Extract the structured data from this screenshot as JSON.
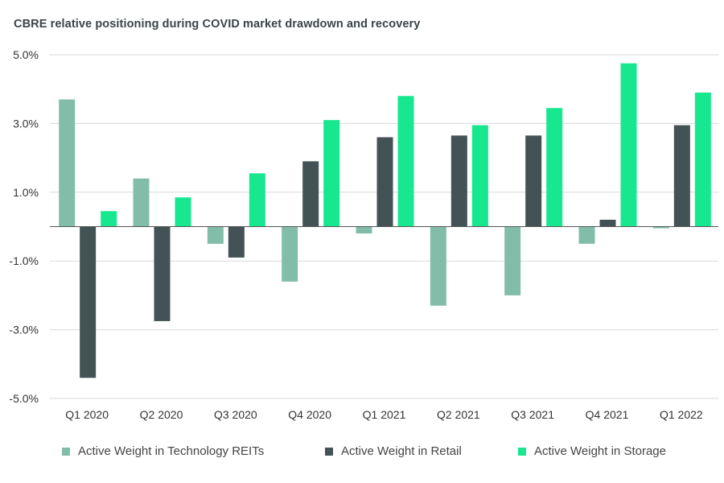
{
  "chart_data": {
    "type": "bar",
    "title": "CBRE relative positioning during COVID market drawdown and recovery",
    "categories": [
      "Q1 2020",
      "Q2 2020",
      "Q3 2020",
      "Q4 2020",
      "Q1 2021",
      "Q2 2021",
      "Q3 2021",
      "Q4 2021",
      "Q1 2022"
    ],
    "series": [
      {
        "name": "Active Weight in Technology REITs",
        "color": "#82bdaa",
        "values": [
          3.7,
          1.4,
          -0.5,
          -1.6,
          -0.2,
          -2.3,
          -2.0,
          -0.5,
          -0.05
        ]
      },
      {
        "name": "Active Weight in Retail",
        "color": "#435254",
        "values": [
          -4.4,
          -2.75,
          -0.9,
          1.9,
          2.6,
          2.65,
          2.65,
          0.2,
          2.95
        ]
      },
      {
        "name": "Active Weight in Storage",
        "color": "#17e88f",
        "values": [
          0.45,
          0.85,
          1.55,
          3.1,
          3.8,
          2.95,
          3.45,
          4.75,
          3.9
        ]
      }
    ],
    "ylim": [
      -5.0,
      5.0
    ],
    "yticks": [
      5.0,
      3.0,
      1.0,
      -1.0,
      -3.0,
      -5.0
    ],
    "ytick_labels": [
      "5.0%",
      "3.0%",
      "1.0%",
      "-1.0%",
      "-3.0%",
      "-5.0%"
    ],
    "grid": true,
    "legend_position": "bottom",
    "xlabel": "",
    "ylabel": ""
  }
}
